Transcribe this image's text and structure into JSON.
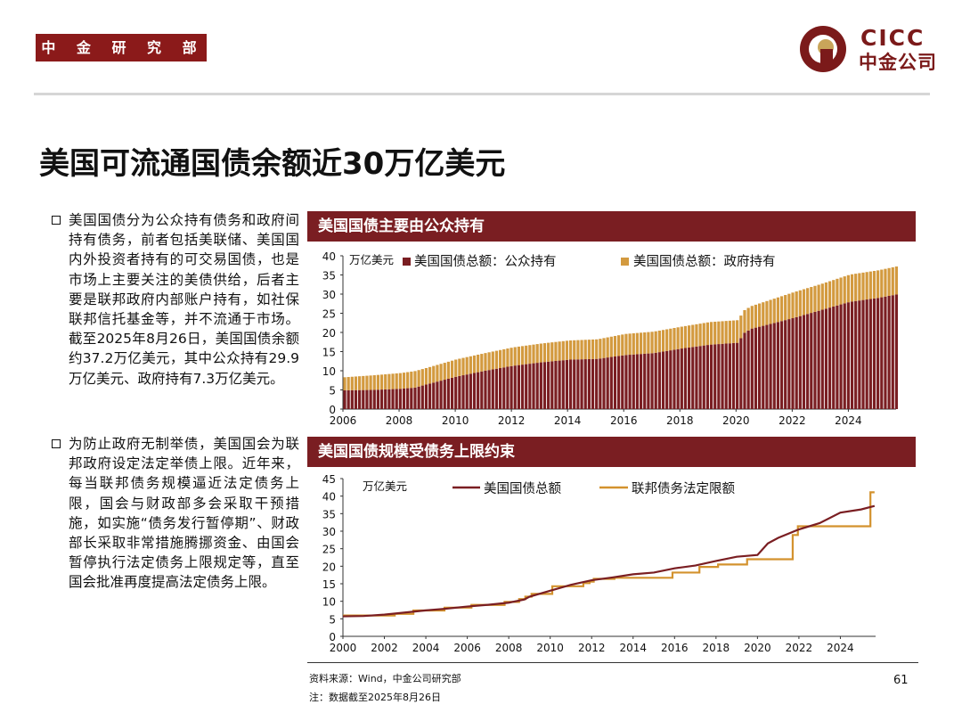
{
  "header": {
    "department": "中 金 研 究 部",
    "logo_en": "CICC",
    "logo_cn": "中金公司"
  },
  "title": "美国可流通国债余额近30万亿美元",
  "bullets": [
    "美国国债分为公众持有债务和政府间持有债务，前者包括美联储、美国国内外投资者持有的可交易国债，也是市场上主要关注的美债供给，后者主要是联邦政府内部账户持有，如社保联邦信托基金等，并不流通于市场。截至2025年8月26日，美国国债余额约37.2万亿美元，其中公众持有29.9万亿美元、政府持有7.3万亿美元。",
    "为防止政府无制举债，美国国会为联邦政府设定法定举债上限。近年来，每当联邦债务规模逼近法定债务上限，国会与财政部多会采取干预措施，如实施“债务发行暂停期”、财政部长采取非常措施腾挪资金、由国会暂停执行法定债务上限规定等，直至国会批准再度提高法定债务上限。"
  ],
  "colors": {
    "maroon": "#7a1e22",
    "gold": "#d39a3f",
    "debt_line": "#7a1e22",
    "limit_line": "#d3922e"
  },
  "footer": {
    "source": "资料来源：Wind，中金公司研究部",
    "note": "注：数据截至2025年8月26日",
    "page": "61"
  },
  "chart_data": [
    {
      "type": "bar",
      "stacked": true,
      "title": "美国国债主要由公众持有",
      "ylabel": "万亿美元",
      "ylim": [
        0,
        40
      ],
      "yticks": [
        0,
        5,
        10,
        15,
        20,
        25,
        30,
        35,
        40
      ],
      "xlim": [
        2006,
        2025.7
      ],
      "xticks": [
        2006,
        2008,
        2010,
        2012,
        2014,
        2016,
        2018,
        2020,
        2022,
        2024
      ],
      "legend_position": "top",
      "x": [
        2006.0,
        2007.0,
        2008.0,
        2008.5,
        2009.0,
        2010.0,
        2011.0,
        2012.0,
        2013.0,
        2014.0,
        2015.0,
        2016.0,
        2017.0,
        2018.0,
        2019.0,
        2020.0,
        2020.25,
        2020.5,
        2021.0,
        2022.0,
        2023.0,
        2024.0,
        2025.0,
        2025.65
      ],
      "series": [
        {
          "name": "美国国债总额：公众持有",
          "color": "#7a1e22",
          "values": [
            4.9,
            5.0,
            5.3,
            5.6,
            6.6,
            8.5,
            10.0,
            11.3,
            12.2,
            12.9,
            13.1,
            14.1,
            14.6,
            15.8,
            16.8,
            17.3,
            20.0,
            21.0,
            21.9,
            23.8,
            25.9,
            28.0,
            29.0,
            29.9
          ]
        },
        {
          "name": "美国国债总额：政府持有",
          "color": "#d39a3f",
          "values": [
            3.4,
            3.8,
            4.1,
            4.3,
            4.3,
            4.5,
            4.6,
            4.8,
            4.9,
            5.0,
            5.1,
            5.5,
            5.6,
            5.7,
            5.9,
            5.9,
            5.9,
            5.9,
            6.2,
            6.7,
            6.8,
            7.1,
            7.2,
            7.3
          ]
        }
      ]
    },
    {
      "type": "line",
      "title": "美国国债规模受债务上限约束",
      "ylabel": "万亿美元",
      "ylim": [
        0,
        45
      ],
      "yticks": [
        0,
        5,
        10,
        15,
        20,
        25,
        30,
        35,
        40,
        45
      ],
      "xlim": [
        2000,
        2025.7
      ],
      "xticks": [
        2000,
        2002,
        2004,
        2006,
        2008,
        2010,
        2012,
        2014,
        2016,
        2018,
        2020,
        2022,
        2024
      ],
      "legend_position": "top",
      "series": [
        {
          "name": "美国国债总额",
          "color": "#7a1e22",
          "step": false,
          "x": [
            2000.0,
            2001.0,
            2002.0,
            2003.0,
            2004.0,
            2005.0,
            2006.0,
            2007.0,
            2008.0,
            2008.75,
            2009.0,
            2010.0,
            2011.0,
            2012.0,
            2013.0,
            2014.0,
            2015.0,
            2016.0,
            2017.0,
            2018.0,
            2019.0,
            2020.0,
            2020.5,
            2021.0,
            2022.0,
            2023.0,
            2024.0,
            2025.0,
            2025.65
          ],
          "values": [
            5.7,
            5.8,
            6.2,
            6.8,
            7.4,
            7.9,
            8.5,
            9.0,
            9.6,
            10.5,
            11.3,
            13.0,
            14.7,
            16.0,
            16.8,
            17.7,
            18.2,
            19.4,
            20.2,
            21.5,
            22.7,
            23.2,
            26.5,
            28.1,
            30.5,
            32.3,
            35.3,
            36.2,
            37.2
          ]
        },
        {
          "name": "联邦债务法定限额",
          "color": "#d3922e",
          "step": true,
          "x": [
            2000.0,
            2002.5,
            2003.4,
            2004.9,
            2006.2,
            2007.8,
            2008.5,
            2008.8,
            2009.1,
            2010.1,
            2011.6,
            2011.9,
            2012.1,
            2013.1,
            2015.9,
            2017.2,
            2018.1,
            2019.5,
            2021.7,
            2021.95,
            2023.45,
            2025.45
          ],
          "values": [
            5.95,
            6.4,
            7.38,
            8.18,
            8.97,
            9.82,
            10.62,
            11.32,
            12.1,
            14.29,
            15.19,
            15.59,
            16.39,
            16.7,
            18.2,
            19.8,
            20.5,
            22.0,
            28.9,
            31.4,
            31.4,
            41.1
          ],
          "end_x": 2025.65
        }
      ]
    }
  ]
}
